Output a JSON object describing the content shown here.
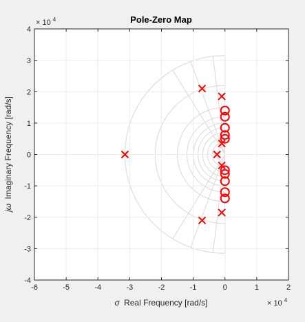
{
  "chart_data": {
    "type": "scatter",
    "title": "Pole-Zero Map",
    "xlabel_symbol": "σ",
    "xlabel": "Real Frequency [rad/s]",
    "ylabel_symbol": "jω",
    "ylabel": "Imaginary Frequency [rad/s]",
    "x_exponent": {
      "base": "× 10",
      "power": "4"
    },
    "y_exponent": {
      "base": "× 10",
      "power": "4"
    },
    "xlim": [
      -6,
      2
    ],
    "ylim": [
      -4,
      4
    ],
    "x_ticks": [
      "-6",
      "-5",
      "-4",
      "-3",
      "-2",
      "-1",
      "0",
      "1",
      "2"
    ],
    "y_ticks": [
      "4",
      "3",
      "2",
      "1",
      "0",
      "-1",
      "-2",
      "-3",
      "-4"
    ],
    "grid": "s-plane damping/frequency grid",
    "marker_color": "#ff0000",
    "grid_color": "#d9d9d9",
    "poles": [
      {
        "x": -3.15,
        "y": 0
      },
      {
        "x": -0.72,
        "y": 2.1
      },
      {
        "x": -0.72,
        "y": -2.1
      },
      {
        "x": -0.1,
        "y": 1.85
      },
      {
        "x": -0.1,
        "y": -1.85
      },
      {
        "x": -0.25,
        "y": 0
      },
      {
        "x": -0.1,
        "y": 0.35
      },
      {
        "x": -0.1,
        "y": -0.35
      }
    ],
    "zeros": [
      {
        "x": 0.0,
        "y": 1.4
      },
      {
        "x": 0.0,
        "y": 1.2
      },
      {
        "x": 0.0,
        "y": 0.85
      },
      {
        "x": 0.0,
        "y": 0.62
      },
      {
        "x": 0.0,
        "y": 0.5
      },
      {
        "x": 0.0,
        "y": -0.5
      },
      {
        "x": 0.0,
        "y": -0.62
      },
      {
        "x": 0.0,
        "y": -0.85
      },
      {
        "x": 0.0,
        "y": -1.2
      },
      {
        "x": 0.0,
        "y": -1.4
      }
    ]
  }
}
